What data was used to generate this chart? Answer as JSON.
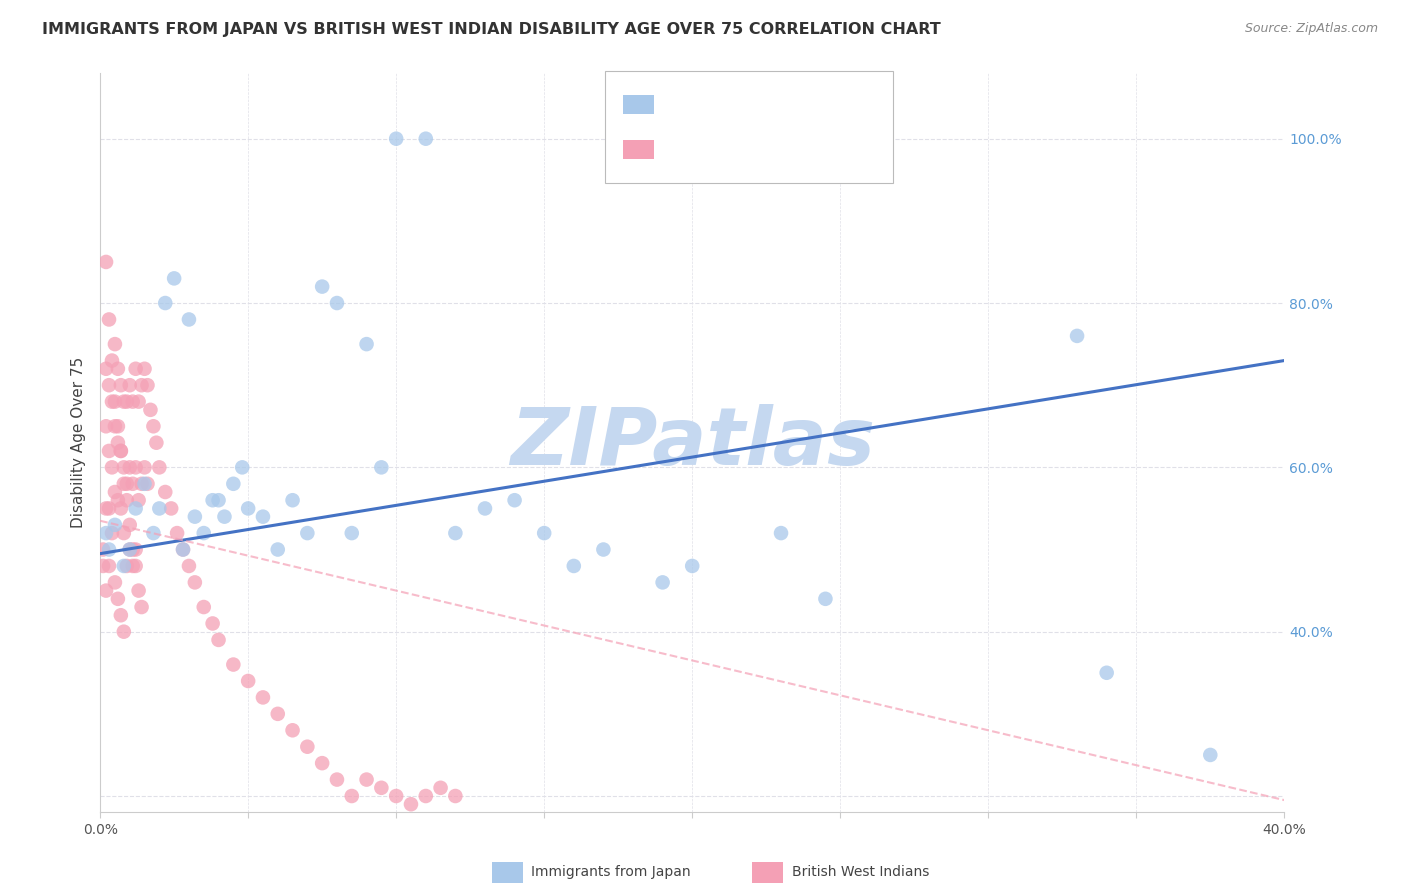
{
  "title": "IMMIGRANTS FROM JAPAN VS BRITISH WEST INDIAN DISABILITY AGE OVER 75 CORRELATION CHART",
  "source": "Source: ZipAtlas.com",
  "ylabel": "Disability Age Over 75",
  "legend_japan_label": "Immigrants from Japan",
  "legend_bwi_label": "British West Indians",
  "xlim": [
    0.0,
    0.4
  ],
  "ylim": [
    0.18,
    1.08
  ],
  "japan_color": "#a8c8ea",
  "bwi_color": "#f4a0b5",
  "japan_line_color": "#4472c4",
  "bwi_line_color": "#f4a0b5",
  "watermark": "ZIPatlas",
  "watermark_color": "#c5d8f0",
  "japan_scatter_x": [
    0.002,
    0.003,
    0.005,
    0.008,
    0.01,
    0.012,
    0.015,
    0.018,
    0.02,
    0.022,
    0.025,
    0.028,
    0.03,
    0.032,
    0.035,
    0.038,
    0.04,
    0.042,
    0.045,
    0.048,
    0.05,
    0.055,
    0.06,
    0.065,
    0.07,
    0.075,
    0.08,
    0.085,
    0.09,
    0.095,
    0.1,
    0.11,
    0.12,
    0.13,
    0.14,
    0.15,
    0.16,
    0.17,
    0.19,
    0.2,
    0.23,
    0.245,
    0.33,
    0.34,
    0.375
  ],
  "japan_scatter_y": [
    0.52,
    0.5,
    0.53,
    0.48,
    0.5,
    0.55,
    0.58,
    0.52,
    0.55,
    0.8,
    0.83,
    0.5,
    0.78,
    0.54,
    0.52,
    0.56,
    0.56,
    0.54,
    0.58,
    0.6,
    0.55,
    0.54,
    0.5,
    0.56,
    0.52,
    0.82,
    0.8,
    0.52,
    0.75,
    0.6,
    1.0,
    1.0,
    0.52,
    0.55,
    0.56,
    0.52,
    0.48,
    0.5,
    0.46,
    0.48,
    0.52,
    0.44,
    0.76,
    0.35,
    0.25
  ],
  "bwi_scatter_x": [
    0.001,
    0.001,
    0.002,
    0.002,
    0.002,
    0.002,
    0.003,
    0.003,
    0.003,
    0.003,
    0.004,
    0.004,
    0.004,
    0.005,
    0.005,
    0.005,
    0.005,
    0.006,
    0.006,
    0.006,
    0.006,
    0.007,
    0.007,
    0.007,
    0.007,
    0.008,
    0.008,
    0.008,
    0.008,
    0.009,
    0.009,
    0.009,
    0.01,
    0.01,
    0.01,
    0.011,
    0.011,
    0.011,
    0.012,
    0.012,
    0.012,
    0.013,
    0.013,
    0.014,
    0.014,
    0.015,
    0.015,
    0.016,
    0.016,
    0.017,
    0.018,
    0.019,
    0.02,
    0.022,
    0.024,
    0.026,
    0.028,
    0.03,
    0.032,
    0.035,
    0.038,
    0.04,
    0.045,
    0.05,
    0.055,
    0.06,
    0.065,
    0.07,
    0.075,
    0.08,
    0.085,
    0.09,
    0.095,
    0.1,
    0.105,
    0.11,
    0.115,
    0.12,
    0.002,
    0.003,
    0.004,
    0.005,
    0.006,
    0.007,
    0.008,
    0.009,
    0.01,
    0.011,
    0.012,
    0.013,
    0.014
  ],
  "bwi_scatter_y": [
    0.5,
    0.48,
    0.72,
    0.65,
    0.55,
    0.45,
    0.7,
    0.62,
    0.55,
    0.48,
    0.68,
    0.6,
    0.52,
    0.75,
    0.65,
    0.57,
    0.46,
    0.72,
    0.63,
    0.56,
    0.44,
    0.7,
    0.62,
    0.55,
    0.42,
    0.68,
    0.6,
    0.52,
    0.4,
    0.68,
    0.58,
    0.48,
    0.7,
    0.6,
    0.5,
    0.68,
    0.58,
    0.48,
    0.72,
    0.6,
    0.5,
    0.68,
    0.56,
    0.7,
    0.58,
    0.72,
    0.6,
    0.7,
    0.58,
    0.67,
    0.65,
    0.63,
    0.6,
    0.57,
    0.55,
    0.52,
    0.5,
    0.48,
    0.46,
    0.43,
    0.41,
    0.39,
    0.36,
    0.34,
    0.32,
    0.3,
    0.28,
    0.26,
    0.24,
    0.22,
    0.2,
    0.22,
    0.21,
    0.2,
    0.19,
    0.2,
    0.21,
    0.2,
    0.85,
    0.78,
    0.73,
    0.68,
    0.65,
    0.62,
    0.58,
    0.56,
    0.53,
    0.5,
    0.48,
    0.45,
    0.43
  ],
  "japan_line_x0": 0.0,
  "japan_line_x1": 0.4,
  "japan_line_y0": 0.495,
  "japan_line_y1": 0.73,
  "bwi_line_x0": 0.0,
  "bwi_line_x1": 0.4,
  "bwi_line_y0": 0.535,
  "bwi_line_y1": 0.195,
  "xtick_positions": [
    0.0,
    0.05,
    0.1,
    0.15,
    0.2,
    0.25,
    0.3,
    0.35,
    0.4
  ],
  "xtick_labels": [
    "0.0%",
    "",
    "",
    "",
    "",
    "",
    "",
    "",
    "40.0%"
  ],
  "ytick_right_positions": [
    0.2,
    0.4,
    0.6,
    0.8,
    1.0
  ],
  "ytick_right_labels": [
    "",
    "40.0%",
    "60.0%",
    "80.0%",
    "100.0%"
  ],
  "grid_color": "#e0e0e8",
  "background_color": "#ffffff",
  "axis_label_color": "#5b9bd5",
  "right_yaxis_color": "#5b9bd5"
}
